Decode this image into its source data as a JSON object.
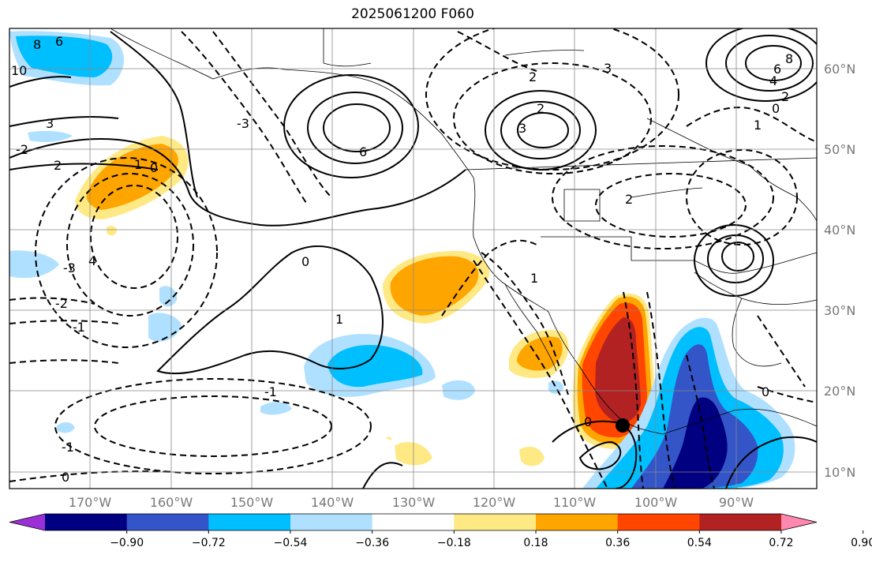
{
  "title": "2025061200 F060",
  "lat_labels": [
    "60°N",
    "50°N",
    "40°N",
    "30°N",
    "20°N",
    "10°N"
  ],
  "lon_labels": [
    "170°W",
    "160°W",
    "150°W",
    "140°W",
    "130°W",
    "120°W",
    "110°W",
    "100°W",
    "90°W"
  ],
  "colorbar": {
    "colors": [
      "#9b30d6",
      "#000080",
      "#3355c8",
      "#00bfff",
      "#b0e0ff",
      "#ffffff",
      "#ffe985",
      "#ffa500",
      "#ff4500",
      "#b22222",
      "#ff88b0"
    ],
    "tick_labels": [
      "−0.90",
      "−0.72",
      "−0.54",
      "−0.36",
      "−0.18",
      "0.18",
      "0.36",
      "0.54",
      "0.72",
      "0.90"
    ]
  },
  "contour_labels": [
    "6",
    "8",
    "10",
    "3",
    "2",
    "1",
    "0",
    "-1",
    "-2",
    "-3",
    "4",
    "6",
    "2",
    "3",
    "2",
    "3",
    "0",
    "-1",
    "2",
    "1",
    "4",
    "6",
    "8",
    "0",
    "2",
    "1",
    "0",
    "-1",
    "-2",
    "-3",
    "1",
    "0",
    "0"
  ]
}
